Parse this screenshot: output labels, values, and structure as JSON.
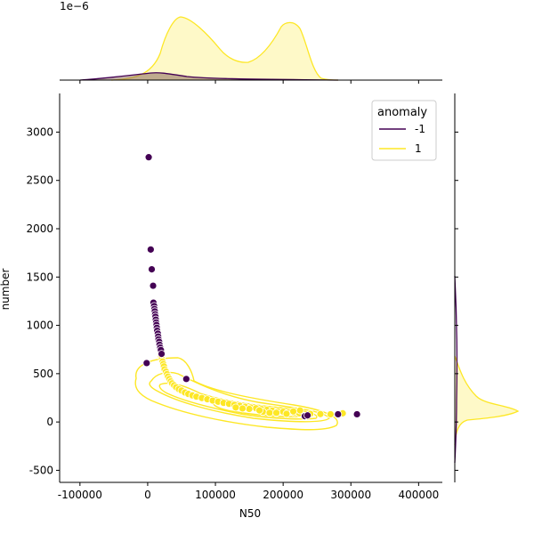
{
  "chart_data": {
    "type": "scatter",
    "xlabel": "N50",
    "ylabel": "number",
    "xlim": [
      -130000,
      435000
    ],
    "ylim": [
      -625,
      3400
    ],
    "xticks": [
      "-100000",
      "0",
      "100000",
      "200000",
      "300000",
      "400000"
    ],
    "yticks": [
      "-500",
      "0",
      "500",
      "1000",
      "1500",
      "2000",
      "2500",
      "3000"
    ],
    "top_axis_offset_label": "1e−6",
    "legend": {
      "title": "anomaly",
      "placement": "top-right",
      "entries": [
        {
          "label": "-1",
          "color": "#440154"
        },
        {
          "label": "1",
          "color": "#fde725"
        }
      ]
    },
    "series": [
      {
        "name": "-1",
        "color": "#440154",
        "points": [
          [
            1500,
            2740
          ],
          [
            4500,
            1785
          ],
          [
            6000,
            1580
          ],
          [
            8000,
            1410
          ],
          [
            8500,
            1235
          ],
          [
            9500,
            1200
          ],
          [
            10000,
            1170
          ],
          [
            10500,
            1145
          ],
          [
            11000,
            1115
          ],
          [
            11500,
            1090
          ],
          [
            12000,
            1060
          ],
          [
            12500,
            1030
          ],
          [
            13000,
            1005
          ],
          [
            13500,
            975
          ],
          [
            14000,
            945
          ],
          [
            15000,
            915
          ],
          [
            15500,
            885
          ],
          [
            16000,
            855
          ],
          [
            17000,
            830
          ],
          [
            17500,
            800
          ],
          [
            18500,
            770
          ],
          [
            19500,
            745
          ],
          [
            20500,
            705
          ],
          [
            -1500,
            610
          ],
          [
            57000,
            445
          ],
          [
            232000,
            60
          ],
          [
            236000,
            68
          ],
          [
            281000,
            80
          ],
          [
            309000,
            80
          ]
        ]
      },
      {
        "name": "1",
        "color": "#fde725",
        "points": [
          [
            20000,
            680
          ],
          [
            21000,
            650
          ],
          [
            22000,
            625
          ],
          [
            23000,
            600
          ],
          [
            24000,
            575
          ],
          [
            25000,
            545
          ],
          [
            27000,
            520
          ],
          [
            28500,
            495
          ],
          [
            30000,
            470
          ],
          [
            32000,
            445
          ],
          [
            34000,
            420
          ],
          [
            36000,
            400
          ],
          [
            39000,
            380
          ],
          [
            42000,
            360
          ],
          [
            46000,
            340
          ],
          [
            50000,
            325
          ],
          [
            55000,
            305
          ],
          [
            60000,
            290
          ],
          [
            66000,
            275
          ],
          [
            72000,
            262
          ],
          [
            80000,
            248
          ],
          [
            88000,
            235
          ],
          [
            96000,
            222
          ],
          [
            104000,
            210
          ],
          [
            112000,
            198
          ],
          [
            120000,
            188
          ],
          [
            128000,
            178
          ],
          [
            136000,
            168
          ],
          [
            144000,
            158
          ],
          [
            152000,
            150
          ],
          [
            160000,
            142
          ],
          [
            168000,
            134
          ],
          [
            176000,
            126
          ],
          [
            184000,
            118
          ],
          [
            192000,
            112
          ],
          [
            200000,
            106
          ],
          [
            208000,
            100
          ],
          [
            216000,
            95
          ],
          [
            224000,
            90
          ],
          [
            240000,
            85
          ],
          [
            255000,
            82
          ],
          [
            270000,
            80
          ],
          [
            288000,
            90
          ],
          [
            170000,
            105
          ],
          [
            180000,
            95
          ],
          [
            190000,
            95
          ],
          [
            205000,
            85
          ],
          [
            215000,
            110
          ],
          [
            225000,
            120
          ],
          [
            165000,
            120
          ],
          [
            150000,
            135
          ],
          [
            140000,
            140
          ],
          [
            130000,
            150
          ]
        ]
      }
    ]
  }
}
